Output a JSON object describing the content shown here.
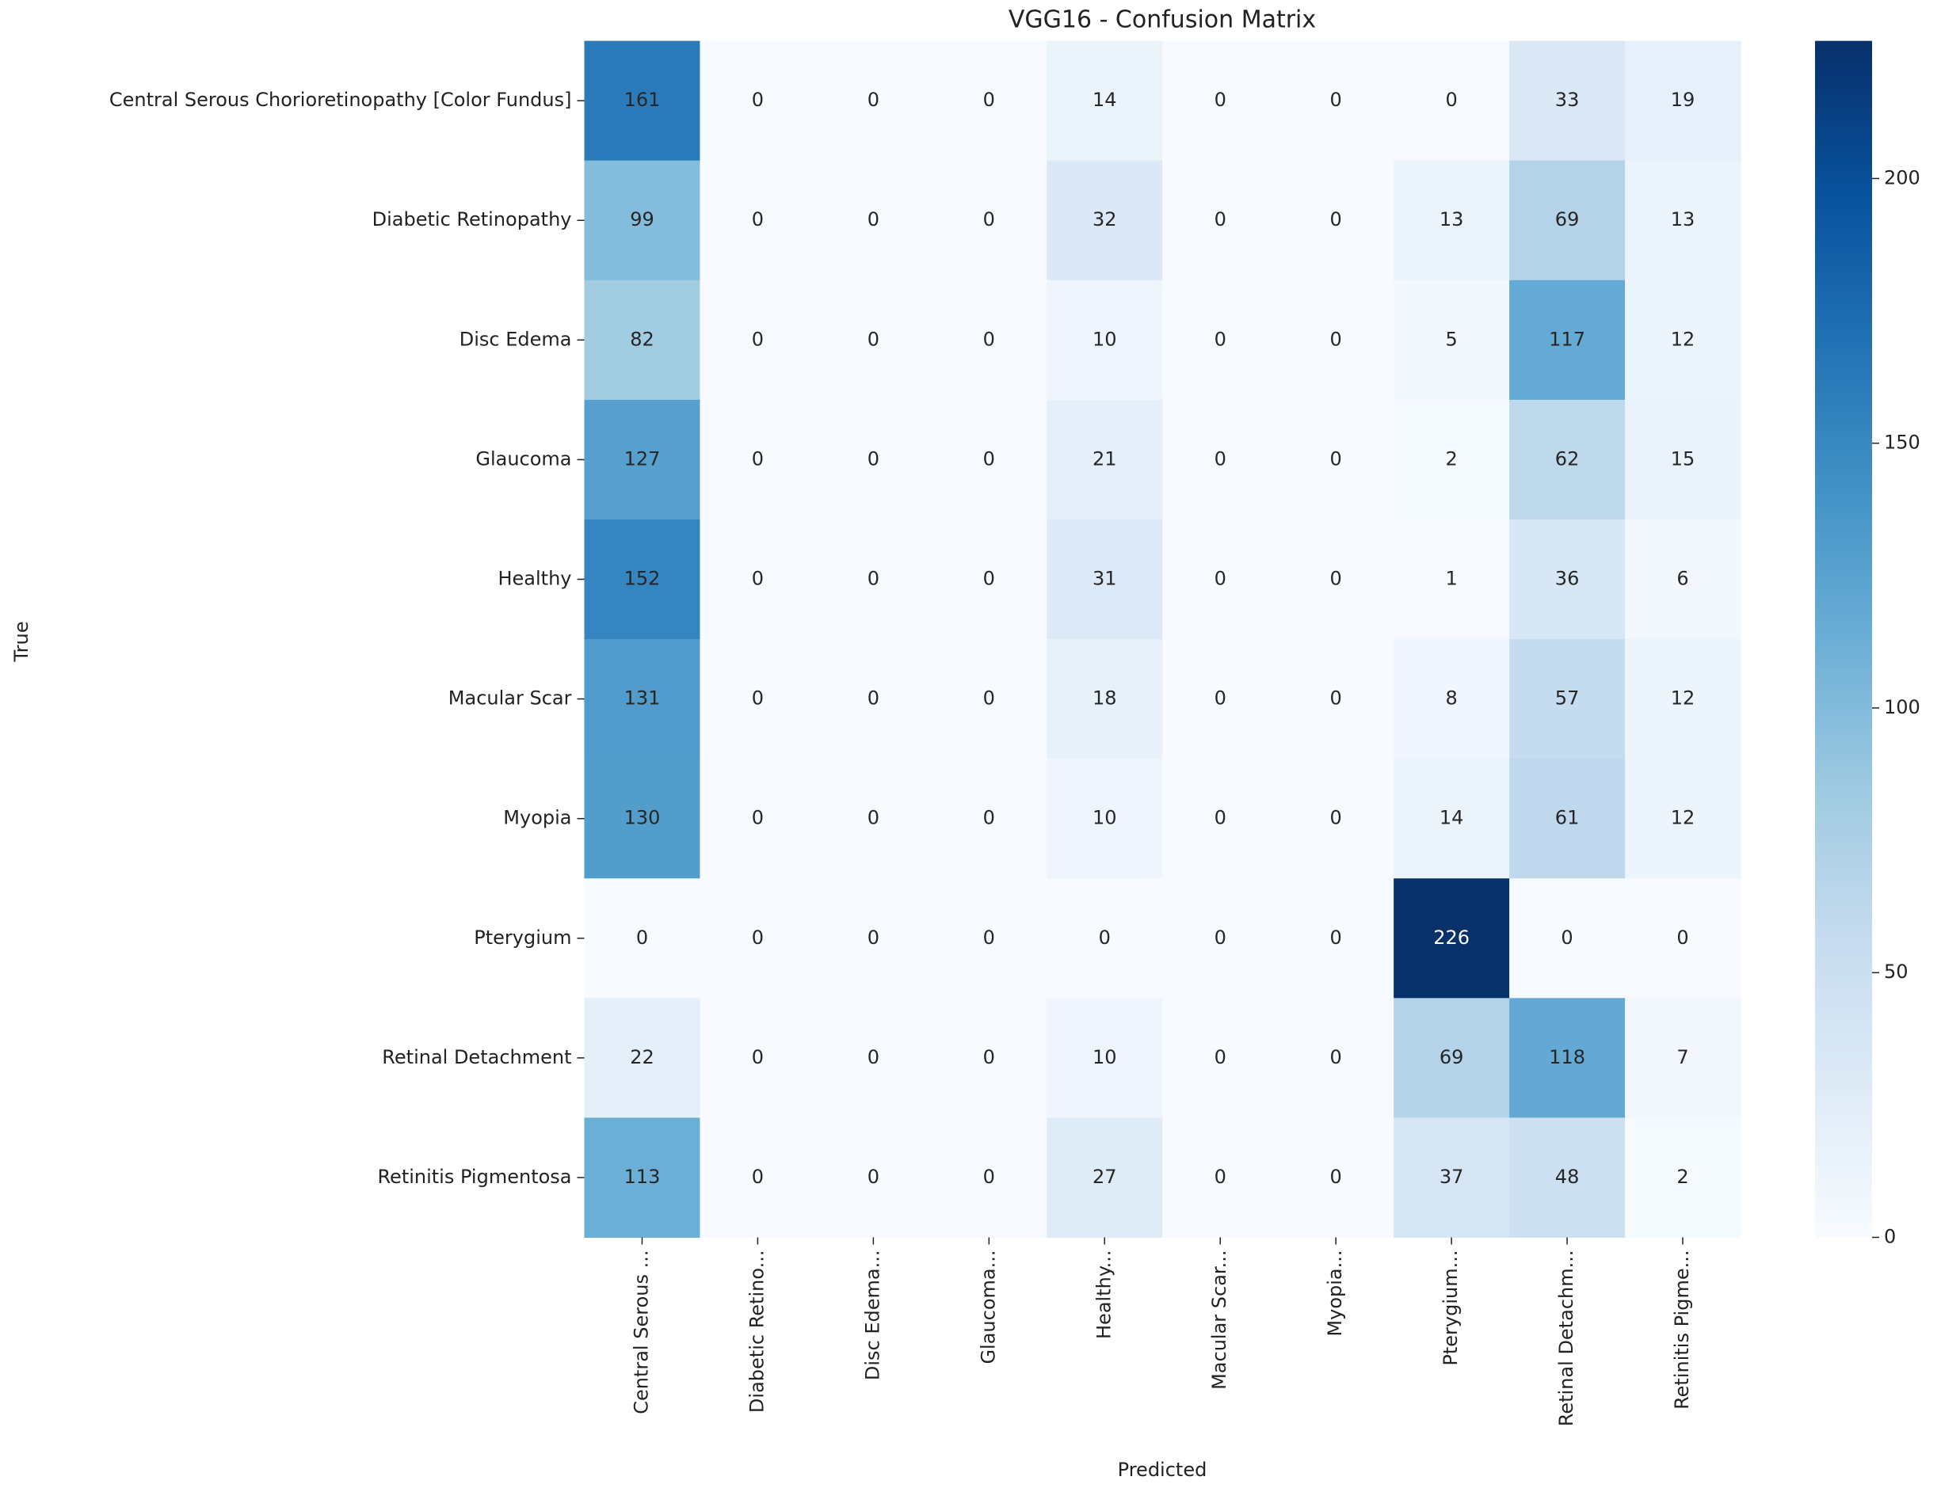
{
  "chart_data": {
    "type": "heatmap",
    "title": "VGG16 - Confusion Matrix",
    "x_label": "Predicted",
    "y_label": "True",
    "x_categories": [
      "Central Serous ...",
      "Diabetic Retino...",
      "Disc Edema...",
      "Glaucoma...",
      "Healthy...",
      "Macular Scar...",
      "Myopia...",
      "Pterygium...",
      "Retinal Detachm...",
      "Retinitis Pigme..."
    ],
    "y_categories": [
      "Central Serous Chorioretinopathy [Color Fundus]",
      "Diabetic Retinopathy",
      "Disc Edema",
      "Glaucoma",
      "Healthy",
      "Macular Scar",
      "Myopia",
      "Pterygium",
      "Retinal Detachment",
      "Retinitis Pigmentosa"
    ],
    "values": [
      [
        161,
        0,
        0,
        0,
        14,
        0,
        0,
        0,
        33,
        19
      ],
      [
        99,
        0,
        0,
        0,
        32,
        0,
        0,
        13,
        69,
        13
      ],
      [
        82,
        0,
        0,
        0,
        10,
        0,
        0,
        5,
        117,
        12
      ],
      [
        127,
        0,
        0,
        0,
        21,
        0,
        0,
        2,
        62,
        15
      ],
      [
        152,
        0,
        0,
        0,
        31,
        0,
        0,
        1,
        36,
        6
      ],
      [
        131,
        0,
        0,
        0,
        18,
        0,
        0,
        8,
        57,
        12
      ],
      [
        130,
        0,
        0,
        0,
        10,
        0,
        0,
        14,
        61,
        12
      ],
      [
        0,
        0,
        0,
        0,
        0,
        0,
        0,
        226,
        0,
        0
      ],
      [
        22,
        0,
        0,
        0,
        10,
        0,
        0,
        69,
        118,
        7
      ],
      [
        113,
        0,
        0,
        0,
        27,
        0,
        0,
        37,
        48,
        2
      ]
    ],
    "colormap": [
      "#f7fbff",
      "#deebf7",
      "#c6dbef",
      "#9ecae1",
      "#6baed6",
      "#4292c6",
      "#2171b5",
      "#08519c",
      "#08306b"
    ],
    "clim": [
      0,
      226
    ],
    "colorbar_ticks": [
      0,
      50,
      100,
      150,
      200
    ]
  }
}
